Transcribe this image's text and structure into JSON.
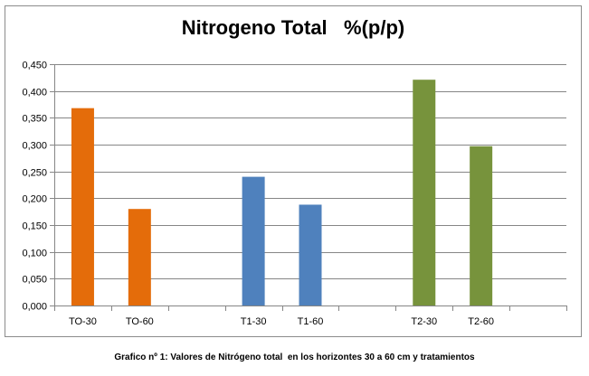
{
  "chart_data": {
    "type": "bar",
    "title": "Nitrogeno Total   %(p/p)",
    "categories": [
      "TO-30",
      "TO-60",
      "",
      "T1-30",
      "T1-60",
      "",
      "T2-30",
      "T2-60",
      ""
    ],
    "values": [
      0.368,
      0.18,
      null,
      0.24,
      0.188,
      null,
      0.421,
      0.297,
      null
    ],
    "bar_colors": [
      "#e46c0a",
      "#e46c0a",
      null,
      "#4f81bd",
      "#4f81bd",
      null,
      "#77933c",
      "#77933c",
      null
    ],
    "ylim": [
      0,
      0.45
    ],
    "yticks": [
      0,
      0.05,
      0.1,
      0.15,
      0.2,
      0.25,
      0.3,
      0.35,
      0.4,
      0.45
    ],
    "ytick_labels": [
      "0,000",
      "0,050",
      "0,100",
      "0,150",
      "0,200",
      "0,250",
      "0,300",
      "0,350",
      "0,400",
      "0,450"
    ],
    "grid": true,
    "xlabel": "",
    "ylabel": ""
  },
  "caption": "Grafico nº 1: Valores de Nitrógeno total  en los horizontes 30 a 60 cm y tratamientos",
  "colors": {
    "orange": "#e46c0a",
    "blue": "#4f81bd",
    "green": "#77933c",
    "grid": "#868686"
  }
}
